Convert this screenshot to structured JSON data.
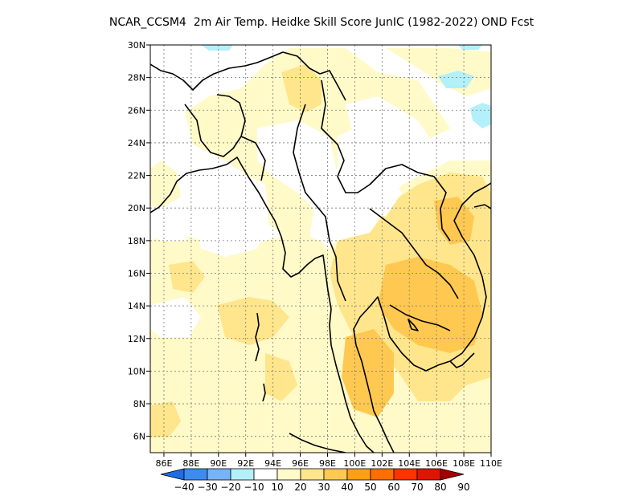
{
  "title": "NCAR_CCSM4  2m Air Temp. Heidke Skill Score JunIC (1982-2022) OND Fcst",
  "lon_labels": [
    "86E",
    "88E",
    "90E",
    "92E",
    "94E",
    "96E",
    "98E",
    "100E",
    "102E",
    "104E",
    "106E",
    "108E",
    "110E"
  ],
  "lat_labels": [
    "30N",
    "28N",
    "26N",
    "24N",
    "22N",
    "20N",
    "18N",
    "16N",
    "14N",
    "12N",
    "10N",
    "8N",
    "6N"
  ],
  "colorbar": {
    "labels": [
      "-40",
      "-30",
      "-20",
      "-10",
      "10",
      "20",
      "30",
      "40",
      "50",
      "60",
      "70",
      "80",
      "90"
    ],
    "colors": [
      "#1e6ce6",
      "#3c8cf0",
      "#78b4f5",
      "#b4f0fa",
      "#ffffff",
      "#fffac8",
      "#ffe68c",
      "#ffc850",
      "#ffa014",
      "#ff6e00",
      "#ff3200",
      "#e11400",
      "#a50000"
    ]
  },
  "chart_data": {
    "type": "heatmap",
    "title": "NCAR_CCSM4  2m Air Temp. Heidke Skill Score JunIC (1982-2022) OND Fcst",
    "xlim": [
      85,
      110
    ],
    "ylim": [
      5,
      30
    ],
    "x_ticks": [
      86,
      88,
      90,
      92,
      94,
      96,
      98,
      100,
      102,
      104,
      106,
      108,
      110
    ],
    "y_ticks": [
      30,
      28,
      26,
      24,
      22,
      20,
      18,
      16,
      14,
      12,
      10,
      8,
      6
    ],
    "levels": [
      -40,
      -30,
      -20,
      -10,
      10,
      20,
      30,
      40,
      50,
      60,
      70,
      80,
      90
    ],
    "grid": true,
    "fields": [
      {
        "level": 10,
        "region": "broad yellow over most of domain"
      },
      {
        "level": 20,
        "region": "central Indochina, Gulf of Thailand, Andaman Sea"
      },
      {
        "level": 30,
        "region": "Cambodia, southern Vietnam, Gulf of Thailand"
      },
      {
        "level": -10,
        "region": "small patches near 30N, 28N 107E, 26N 109E"
      }
    ]
  }
}
